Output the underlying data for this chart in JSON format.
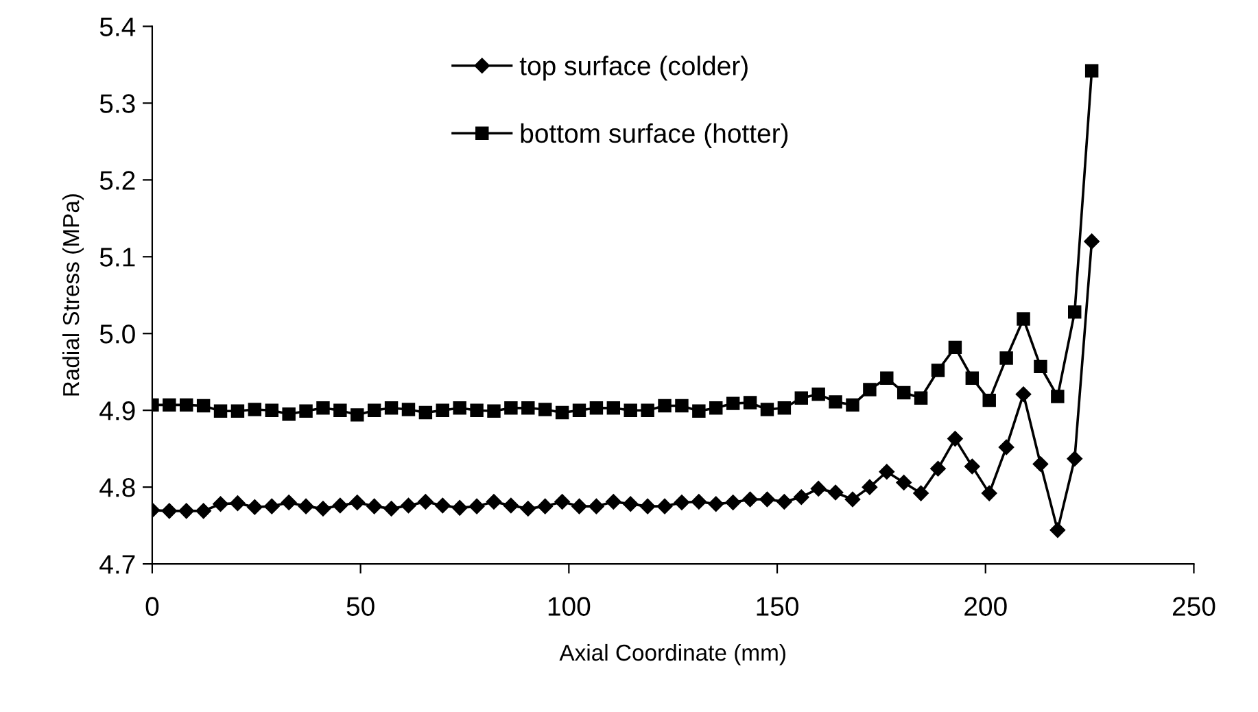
{
  "chart_data": {
    "type": "line",
    "xlabel": "Axial Coordinate (mm)",
    "ylabel": "Radial Stress (MPa)",
    "x": [
      0,
      4.1,
      8.2,
      12.3,
      16.4,
      20.5,
      24.6,
      28.7,
      32.8,
      36.9,
      41,
      45.1,
      49.2,
      53.3,
      57.4,
      61.5,
      65.6,
      69.7,
      73.8,
      77.9,
      82,
      86.1,
      90.2,
      94.3,
      98.4,
      102.5,
      106.6,
      110.7,
      114.8,
      118.9,
      123,
      127.1,
      131.2,
      135.3,
      139.4,
      143.5,
      147.6,
      151.7,
      155.8,
      159.9,
      164,
      168.1,
      172.2,
      176.3,
      180.4,
      184.5,
      188.6,
      192.7,
      196.8,
      200.9,
      205,
      209.1,
      213.2,
      217.3,
      221.4,
      225.5
    ],
    "series": [
      {
        "name": "top surface (colder)",
        "color": "#000000",
        "marker": "diamond",
        "values": [
          4.77,
          4.769,
          4.769,
          4.769,
          4.778,
          4.779,
          4.774,
          4.775,
          4.78,
          4.775,
          4.772,
          4.776,
          4.78,
          4.775,
          4.772,
          4.776,
          4.781,
          4.776,
          4.773,
          4.775,
          4.781,
          4.776,
          4.772,
          4.775,
          4.781,
          4.775,
          4.775,
          4.781,
          4.778,
          4.775,
          4.775,
          4.78,
          4.781,
          4.778,
          4.78,
          4.784,
          4.784,
          4.781,
          4.787,
          4.798,
          4.793,
          4.784,
          4.8,
          4.82,
          4.806,
          4.792,
          4.824,
          4.863,
          4.827,
          4.792,
          4.852,
          4.921,
          4.83,
          4.744,
          4.837,
          5.12
        ]
      },
      {
        "name": "bottom surface (hotter)",
        "color": "#000000",
        "marker": "square",
        "values": [
          4.907,
          4.907,
          4.907,
          4.906,
          4.899,
          4.899,
          4.901,
          4.9,
          4.895,
          4.899,
          4.903,
          4.9,
          4.894,
          4.9,
          4.903,
          4.901,
          4.897,
          4.9,
          4.903,
          4.9,
          4.899,
          4.903,
          4.903,
          4.901,
          4.897,
          4.9,
          4.903,
          4.903,
          4.9,
          4.9,
          4.906,
          4.906,
          4.899,
          4.903,
          4.909,
          4.91,
          4.901,
          4.903,
          4.916,
          4.921,
          4.911,
          4.907,
          4.927,
          4.942,
          4.923,
          4.916,
          4.952,
          4.982,
          4.942,
          4.913,
          4.968,
          5.019,
          4.957,
          4.918,
          5.028,
          5.342
        ]
      }
    ],
    "xlim": [
      0,
      250
    ],
    "xticks": [
      0,
      50,
      100,
      150,
      200,
      250
    ],
    "ylim": [
      4.7,
      5.4
    ],
    "yticks": [
      {
        "value": 4.7,
        "label": "4.7"
      },
      {
        "value": 4.8,
        "label": "4.8"
      },
      {
        "value": 4.9,
        "label": "4.9"
      },
      {
        "value": 5.0,
        "label": "5.0"
      },
      {
        "value": 5.1,
        "label": "5.1"
      },
      {
        "value": 5.2,
        "label": "5.2"
      },
      {
        "value": 5.3,
        "label": "5.3"
      },
      {
        "value": 5.4,
        "label": "5.4"
      }
    ],
    "grid": false,
    "legend": "top",
    "line_style": "solid"
  }
}
